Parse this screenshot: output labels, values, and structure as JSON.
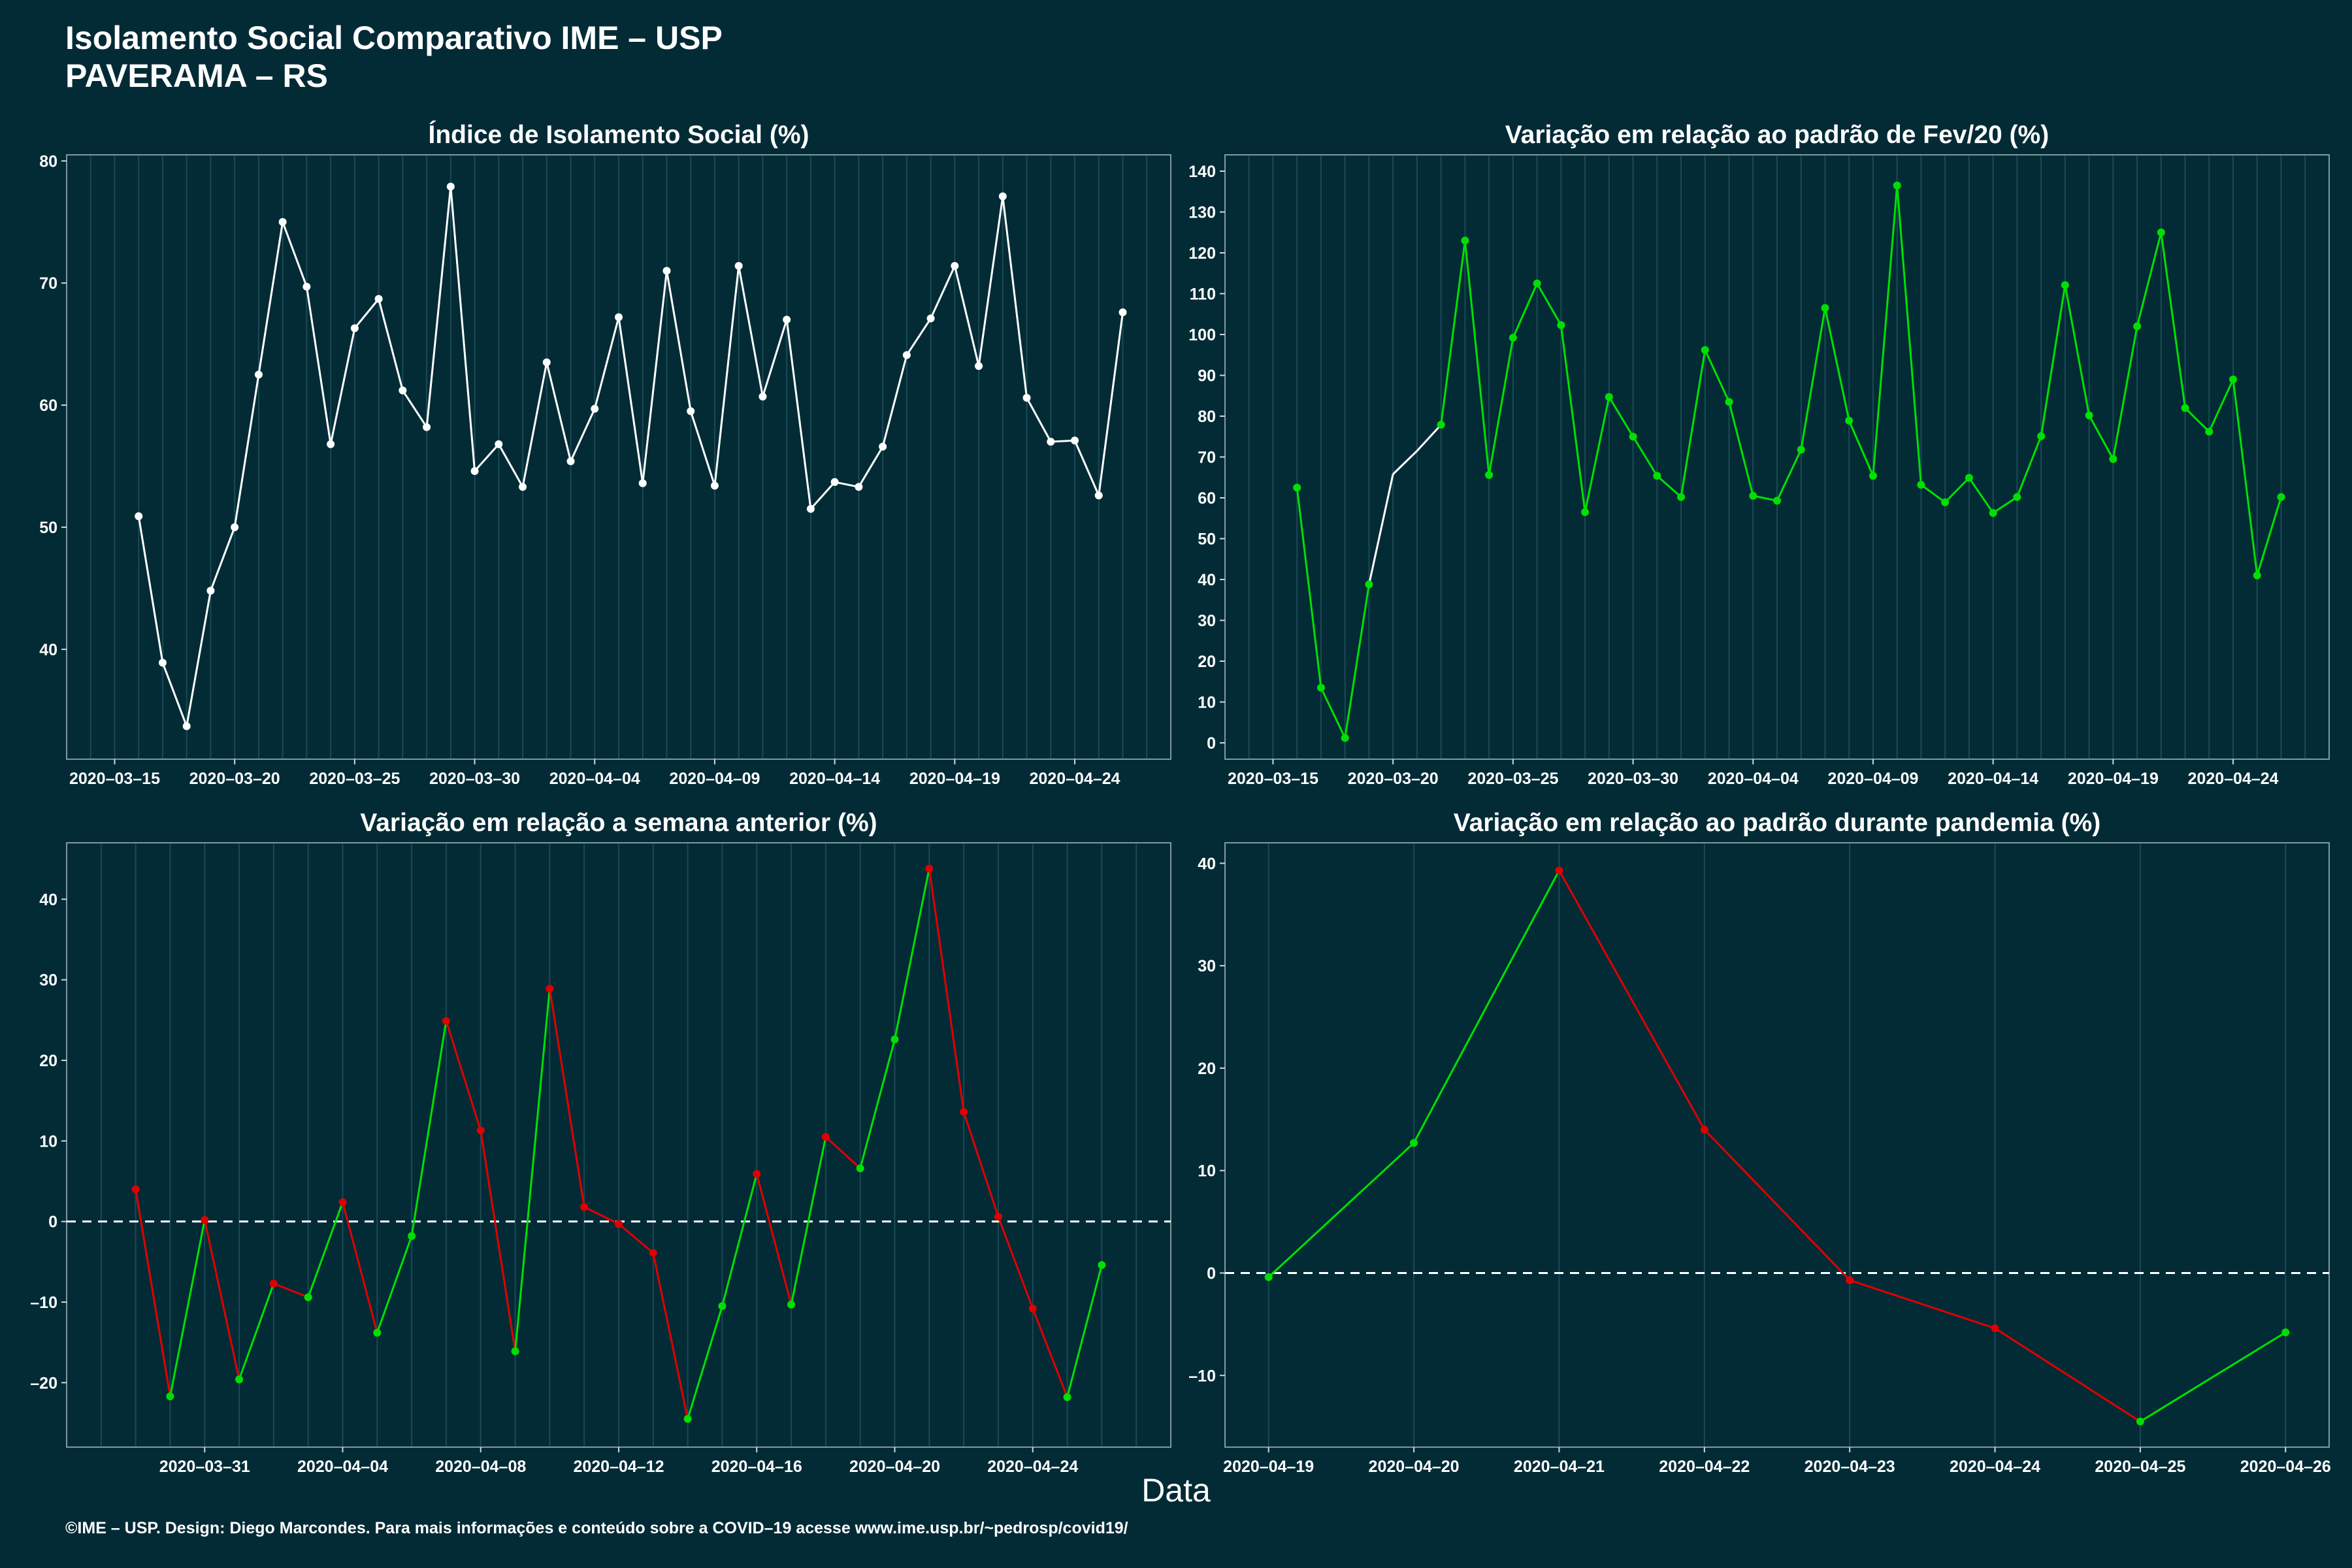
{
  "header": {
    "title_line1": "Isolamento Social Comparativo IME – USP",
    "title_line2": "PAVERAMA – RS"
  },
  "xlabel": "Data",
  "footer": "©IME – USP. Design: Diego Marcondes. Para mais informações e conteúdo sobre a COVID–19 acesse www.ime.usp.br/~pedrosp/covid19/",
  "colors": {
    "background": "#022b36",
    "white": "#ffffff",
    "green": "#00e000",
    "red": "#e00000",
    "grid": "#1a4a55"
  },
  "chart_data": [
    {
      "type": "line",
      "title": "Índice de Isolamento Social (%)",
      "x_start": "2020-03-16",
      "xlim": [
        "2020-03-13",
        "2020-04-28"
      ],
      "xticks": [
        "2020-03-15",
        "2020-03-20",
        "2020-03-25",
        "2020-03-30",
        "2020-04-04",
        "2020-04-09",
        "2020-04-14",
        "2020-04-19",
        "2020-04-24"
      ],
      "ylim": [
        31,
        80.5
      ],
      "yticks": [
        40,
        50,
        60,
        70,
        80
      ],
      "values": [
        50.9,
        38.9,
        33.7,
        44.8,
        50.0,
        62.5,
        75.0,
        69.7,
        56.8,
        66.3,
        68.7,
        61.2,
        58.2,
        77.9,
        54.6,
        56.8,
        53.3,
        63.5,
        55.4,
        59.7,
        67.2,
        53.6,
        71.0,
        59.5,
        53.4,
        71.4,
        60.7,
        67.0,
        51.5,
        53.7,
        53.3,
        56.6,
        64.1,
        67.1,
        71.4,
        63.2,
        77.1,
        60.6,
        57.0,
        57.1,
        52.6,
        67.6
      ],
      "color_mode": "white"
    },
    {
      "type": "line",
      "title": "Variação em relação ao padrão de Fev/20 (%)",
      "x_start": "2020-03-16",
      "xlim": [
        "2020-03-13",
        "2020-04-28"
      ],
      "xticks": [
        "2020-03-15",
        "2020-03-20",
        "2020-03-25",
        "2020-03-30",
        "2020-04-04",
        "2020-04-09",
        "2020-04-14",
        "2020-04-19",
        "2020-04-24"
      ],
      "ylim": [
        -4,
        144
      ],
      "yticks": [
        0,
        10,
        20,
        30,
        40,
        50,
        60,
        70,
        80,
        90,
        100,
        110,
        120,
        130,
        140
      ],
      "values": [
        62.5,
        13.5,
        1.2,
        38.8,
        65.8,
        71.5,
        77.9,
        123.0,
        65.6,
        99.2,
        112.5,
        102.3,
        56.5,
        84.7,
        75.0,
        65.4,
        60.2,
        96.2,
        83.5,
        60.5,
        59.3,
        71.8,
        106.5,
        78.9,
        65.4,
        136.5,
        63.2,
        58.9,
        64.9,
        56.3,
        60.2,
        75.1,
        112.1,
        80.2,
        69.5,
        102.0,
        125.0,
        82.0,
        76.2,
        89.0,
        41.0,
        60.2
      ],
      "color_mode": "green_missing",
      "missing_markers": [
        4,
        5
      ]
    },
    {
      "type": "line",
      "title": "Variação em relação a semana anterior (%)",
      "x_start": "2020-03-29",
      "xlim": [
        "2020-03-27",
        "2020-04-28"
      ],
      "xticks": [
        "2020-03-31",
        "2020-04-04",
        "2020-04-08",
        "2020-04-12",
        "2020-04-16",
        "2020-04-20",
        "2020-04-24"
      ],
      "ylim": [
        -28,
        47
      ],
      "yticks": [
        -20,
        -10,
        0,
        10,
        20,
        30,
        40
      ],
      "values": [
        4.0,
        -21.7,
        0.2,
        -19.6,
        -7.7,
        -9.4,
        2.4,
        -13.8,
        -1.8,
        24.9,
        11.3,
        -16.1,
        28.9,
        1.8,
        -0.3,
        -3.9,
        -24.5,
        -10.5,
        5.9,
        -10.3,
        10.5,
        6.6,
        22.6,
        43.8,
        13.6,
        0.6,
        -10.8,
        -21.8,
        -5.4
      ],
      "color_mode": "trend",
      "zero_line": true
    },
    {
      "type": "line",
      "title": "Variação em relação ao padrão durante pandemia (%)",
      "x_start": "2020-04-19",
      "xlim": [
        "2020-04-18.7",
        "2020-04-26.3"
      ],
      "xticks": [
        "2020-04-19",
        "2020-04-20",
        "2020-04-21",
        "2020-04-22",
        "2020-04-23",
        "2020-04-24",
        "2020-04-25",
        "2020-04-26"
      ],
      "ylim": [
        -17,
        42
      ],
      "yticks": [
        -10,
        0,
        10,
        20,
        30,
        40
      ],
      "values": [
        -0.4,
        12.7,
        39.3,
        14.0,
        -0.7,
        -5.4,
        -14.5,
        -5.8
      ],
      "color_mode": "trend",
      "zero_line": true
    }
  ]
}
